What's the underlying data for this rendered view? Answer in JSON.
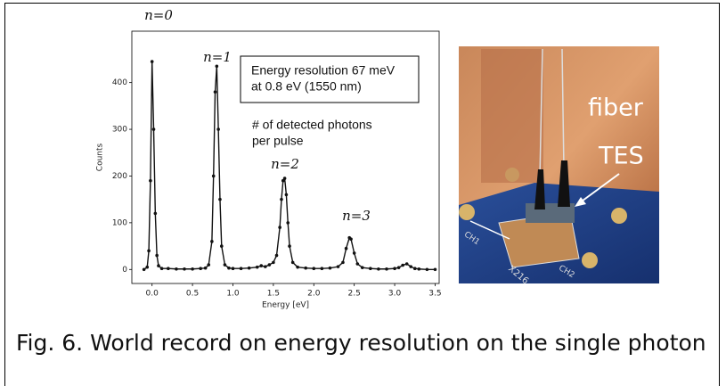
{
  "chart_data": {
    "type": "line",
    "xlabel": "Energy [eV]",
    "ylabel": "Counts",
    "x": [
      -0.1,
      -0.06,
      -0.04,
      -0.02,
      0.0,
      0.02,
      0.04,
      0.06,
      0.08,
      0.12,
      0.2,
      0.3,
      0.4,
      0.5,
      0.6,
      0.66,
      0.7,
      0.74,
      0.76,
      0.78,
      0.8,
      0.82,
      0.84,
      0.86,
      0.9,
      0.95,
      1.0,
      1.1,
      1.2,
      1.3,
      1.35,
      1.4,
      1.45,
      1.5,
      1.54,
      1.58,
      1.6,
      1.62,
      1.64,
      1.66,
      1.68,
      1.7,
      1.74,
      1.8,
      1.9,
      2.0,
      2.1,
      2.2,
      2.3,
      2.36,
      2.4,
      2.44,
      2.46,
      2.5,
      2.54,
      2.6,
      2.7,
      2.8,
      2.9,
      3.0,
      3.05,
      3.1,
      3.15,
      3.2,
      3.25,
      3.3,
      3.4,
      3.5
    ],
    "series": [
      {
        "name": "Counts",
        "color": "#111111",
        "values": [
          0,
          5,
          40,
          190,
          445,
          300,
          120,
          30,
          8,
          2,
          2,
          1,
          1,
          1,
          2,
          3,
          10,
          60,
          200,
          380,
          435,
          300,
          150,
          50,
          10,
          3,
          2,
          2,
          3,
          5,
          8,
          6,
          10,
          15,
          30,
          90,
          150,
          190,
          195,
          160,
          100,
          50,
          15,
          5,
          3,
          2,
          2,
          3,
          6,
          15,
          45,
          68,
          65,
          35,
          12,
          4,
          2,
          1,
          1,
          2,
          4,
          9,
          12,
          6,
          2,
          1,
          0,
          0
        ]
      }
    ],
    "xlim": [
      -0.25,
      3.55
    ],
    "ylim": [
      -30,
      510
    ],
    "xticks": [
      {
        "value": 0,
        "label": "0.0"
      },
      0.5,
      {
        "value": 1,
        "label": "1.0"
      },
      1.5,
      {
        "value": 2,
        "label": "2.0"
      },
      2.5,
      {
        "value": 3,
        "label": "3.0"
      },
      3.5
    ],
    "yticks": [
      0,
      100,
      200,
      300,
      400
    ],
    "grid": false,
    "annotations": [
      "n=0",
      "n=1",
      "n=2",
      "n=3"
    ],
    "textbox": [
      "Energy resolution 67 meV",
      "at 0.8 eV (1550 nm)"
    ],
    "note": [
      "# of detected photons",
      "per pulse"
    ]
  },
  "photo": {
    "labels": [
      "fiber",
      "TES",
      "CH1",
      "X216",
      "CH2"
    ]
  },
  "caption": "Fig. 6. World record on energy resolution on the single photon"
}
